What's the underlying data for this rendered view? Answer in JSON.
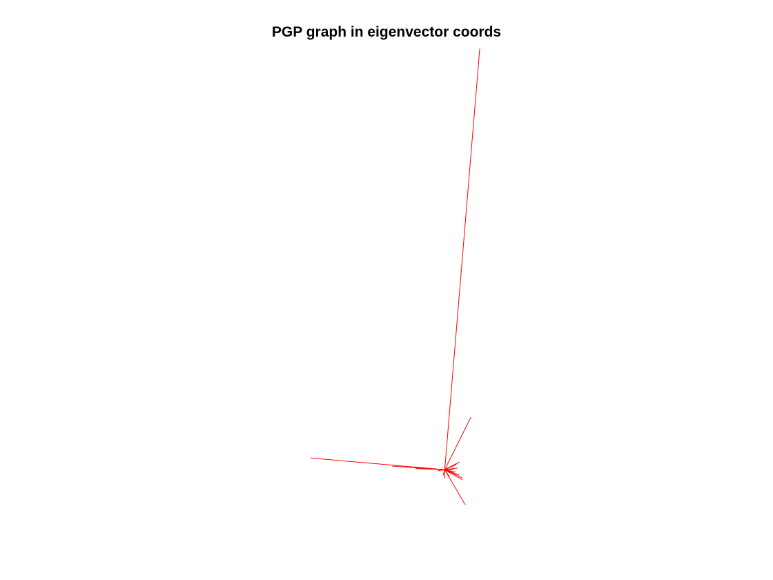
{
  "chart_data": {
    "type": "line",
    "title": "PGP graph in eigenvector coords",
    "xlabel": "",
    "ylabel": "",
    "axes_visible": false,
    "grid": false,
    "line_color": "#ff0000",
    "hub": [
      0.0,
      0.0
    ],
    "xlim": [
      -0.23,
      0.08
    ],
    "ylim": [
      -0.08,
      0.73
    ],
    "edges": [
      {
        "x": [
          0.0,
          0.06
        ],
        "y": [
          0.0,
          0.72
        ]
      },
      {
        "x": [
          0.0,
          -0.23
        ],
        "y": [
          0.0,
          0.02
        ]
      },
      {
        "x": [
          0.0,
          0.045
        ],
        "y": [
          0.0,
          0.09
        ]
      },
      {
        "x": [
          0.0,
          0.035
        ],
        "y": [
          0.0,
          -0.06
        ]
      },
      {
        "x": [
          0.0,
          0.025
        ],
        "y": [
          0.0,
          0.013
        ]
      },
      {
        "x": [
          0.0,
          0.03
        ],
        "y": [
          0.0,
          -0.014
        ]
      },
      {
        "x": [
          0.0,
          0.03
        ],
        "y": [
          0.0,
          -0.017
        ]
      },
      {
        "x": [
          0.0,
          0.025
        ],
        "y": [
          0.0,
          -0.009
        ]
      },
      {
        "x": [
          0.0,
          0.02
        ],
        "y": [
          0.0,
          0.009
        ]
      },
      {
        "x": [
          0.0,
          0.022
        ],
        "y": [
          0.0,
          0.003
        ]
      },
      {
        "x": [
          0.0,
          0.018
        ],
        "y": [
          0.0,
          -0.004
        ]
      },
      {
        "x": [
          0.0,
          0.012
        ],
        "y": [
          0.0,
          0.006
        ]
      },
      {
        "x": [
          0.0,
          0.01
        ],
        "y": [
          0.0,
          -0.006
        ]
      },
      {
        "x": [
          0.0,
          0.015
        ],
        "y": [
          0.0,
          0.0
        ]
      },
      {
        "x": [
          0.0,
          -0.09
        ],
        "y": [
          0.0,
          0.006
        ]
      },
      {
        "x": [
          0.0,
          -0.05
        ],
        "y": [
          0.0,
          0.002
        ]
      },
      {
        "x": [
          0.0,
          -0.02
        ],
        "y": [
          0.0,
          0.001
        ]
      },
      {
        "x": [
          0.0,
          -0.012
        ],
        "y": [
          0.0,
          -0.002
        ]
      },
      {
        "x": [
          0.0,
          0.0
        ],
        "y": [
          0.0,
          -0.015
        ]
      },
      {
        "x": [
          0.0,
          -0.003
        ],
        "y": [
          0.0,
          -0.01
        ]
      },
      {
        "x": [
          0.0,
          0.008
        ],
        "y": [
          0.0,
          -0.012
        ]
      }
    ]
  }
}
